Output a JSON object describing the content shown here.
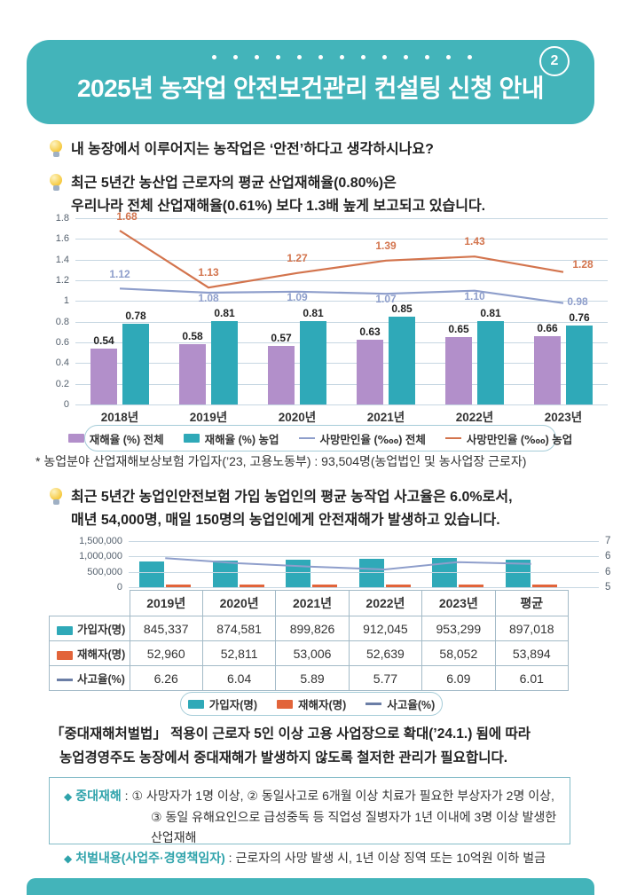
{
  "page": {
    "badge": "2",
    "title": "2025년 농작업 안전보건관리 컨설팅 신청 안내"
  },
  "intro": {
    "q1": "내 농장에서 이루어지는 농작업은 ‘안전’하다고 생각하시나요?",
    "q2_line1": "최근 5년간 농산업 근로자의 평균 산업재해율(0.80%)은",
    "q2_line2": "우리나라 전체 산업재해율(0.61%) 보다 1.3배 높게 보고되고 있습니다."
  },
  "chart1_note": "* 농업분야 산업재해보상보험 가입자(’23, 고용노동부) : 93,504명(농업법인 및 농사업장 근로자)",
  "insight": {
    "line1": "최근 5년간 농업인안전보험 가입 농업인의 평균 농작업 사고율은 6.0%로서,",
    "line2": "매년 54,000명, 매일 150명의 농업인에게 안전재해가 발생하고 있습니다."
  },
  "law": {
    "line1": "「중대재해처벌법」 적용이 근로자 5인 이상 고용 사업장으로 확대(’24.1.) 됨에 따라",
    "line2": "농업경영주도 농장에서 중대재해가 발생하지 않도록 철저한 관리가 필요합니다."
  },
  "info_box": {
    "item1_label": "중대재해",
    "item1_sep": " : ",
    "item1_line1": "① 사망자가 1명 이상, ② 동일사고로 6개월 이상 치료가 필요한 부상자가 2명 이상,",
    "item1_line2": "③ 동일 유해요인으로 급성중독 등 직업성 질병자가 1년 이내에 3명 이상 발생한 산업재해",
    "item2_label": "처벌내용(사업주·경영책임자)",
    "item2_sep": " : ",
    "item2_content": "근로자의 사망 발생 시, 1년 이상 징역 또는 10억원 이하 벌금"
  },
  "colors": {
    "banner_teal": "#43b4ba",
    "purple_bar": "#b28fca",
    "teal_bar": "#2fa9b8",
    "blue_line": "#8e9ecb",
    "orange_line": "#d3744d",
    "orange_bar": "#e2643a",
    "legend2_line": "#6b7ea6"
  },
  "chart_data": [
    {
      "type": "bar+line",
      "title": "",
      "categories": [
        "2018년",
        "2019년",
        "2020년",
        "2021년",
        "2022년",
        "2023년"
      ],
      "ylim": [
        0,
        1.8
      ],
      "yticks": [
        "1.8",
        "1.6",
        "1.4",
        "1.2",
        "1",
        "0.8",
        "0.6",
        "0.4",
        "0.2",
        "0"
      ],
      "grid": true,
      "legend_position": "bottom",
      "series": [
        {
          "name": "재해율 (%) 전체",
          "type": "bar",
          "color_key": "purple_bar",
          "values": [
            0.54,
            0.58,
            0.57,
            0.63,
            0.65,
            0.66
          ],
          "labels": [
            "0.54",
            "0.58",
            "0.57",
            "0.63",
            "0.65",
            "0.66"
          ]
        },
        {
          "name": "재해율 (%) 농업",
          "type": "bar",
          "color_key": "teal_bar",
          "values": [
            0.78,
            0.81,
            0.81,
            0.85,
            0.81,
            0.76
          ],
          "labels": [
            "0.78",
            "0.81",
            "0.81",
            "0.85",
            "0.81",
            "0.76"
          ]
        },
        {
          "name": "사망만인율 (‱) 전체",
          "type": "line",
          "color_key": "blue_line",
          "values": [
            1.12,
            1.08,
            1.09,
            1.07,
            1.1,
            0.98
          ],
          "labels": [
            "1.12",
            "1.08",
            "1.09",
            "1.07",
            "1.10",
            "0.98"
          ]
        },
        {
          "name": "사망만인율 (‱) 농업",
          "type": "line",
          "color_key": "orange_line",
          "values": [
            1.68,
            1.13,
            1.27,
            1.39,
            1.43,
            1.28
          ],
          "labels": [
            "1.68",
            "1.13",
            "1.27",
            "1.39",
            "1.43",
            "1.28"
          ]
        }
      ]
    },
    {
      "type": "bar+line+table",
      "title": "",
      "categories": [
        "2019년",
        "2020년",
        "2021년",
        "2022년",
        "2023년",
        "평균"
      ],
      "left_ylim": [
        0,
        1500000
      ],
      "left_yticks": [
        "1,500,000",
        "1,000,000",
        "500,000",
        "0"
      ],
      "right_ylim": [
        5,
        7
      ],
      "right_yticks": [
        "7",
        "6",
        "6",
        "5"
      ],
      "grid": true,
      "legend_position": "bottom",
      "series": [
        {
          "name": "가입자(명)",
          "type": "bar",
          "color_key": "teal_bar",
          "values": [
            845337,
            874581,
            899826,
            912045,
            953299,
            897018
          ],
          "labels": [
            "845,337",
            "874,581",
            "899,826",
            "912,045",
            "953,299",
            "897,018"
          ]
        },
        {
          "name": "재해자(명)",
          "type": "bar",
          "color_key": "orange_bar",
          "values": [
            52960,
            52811,
            53006,
            52639,
            58052,
            53894
          ],
          "labels": [
            "52,960",
            "52,811",
            "53,006",
            "52,639",
            "58,052",
            "53,894"
          ]
        },
        {
          "name": "사고율(%)",
          "type": "line",
          "color_key": "blue_line",
          "values": [
            6.26,
            6.04,
            5.89,
            5.77,
            6.09,
            6.01
          ],
          "labels": [
            "6.26",
            "6.04",
            "5.89",
            "5.77",
            "6.09",
            "6.01"
          ]
        }
      ]
    }
  ]
}
